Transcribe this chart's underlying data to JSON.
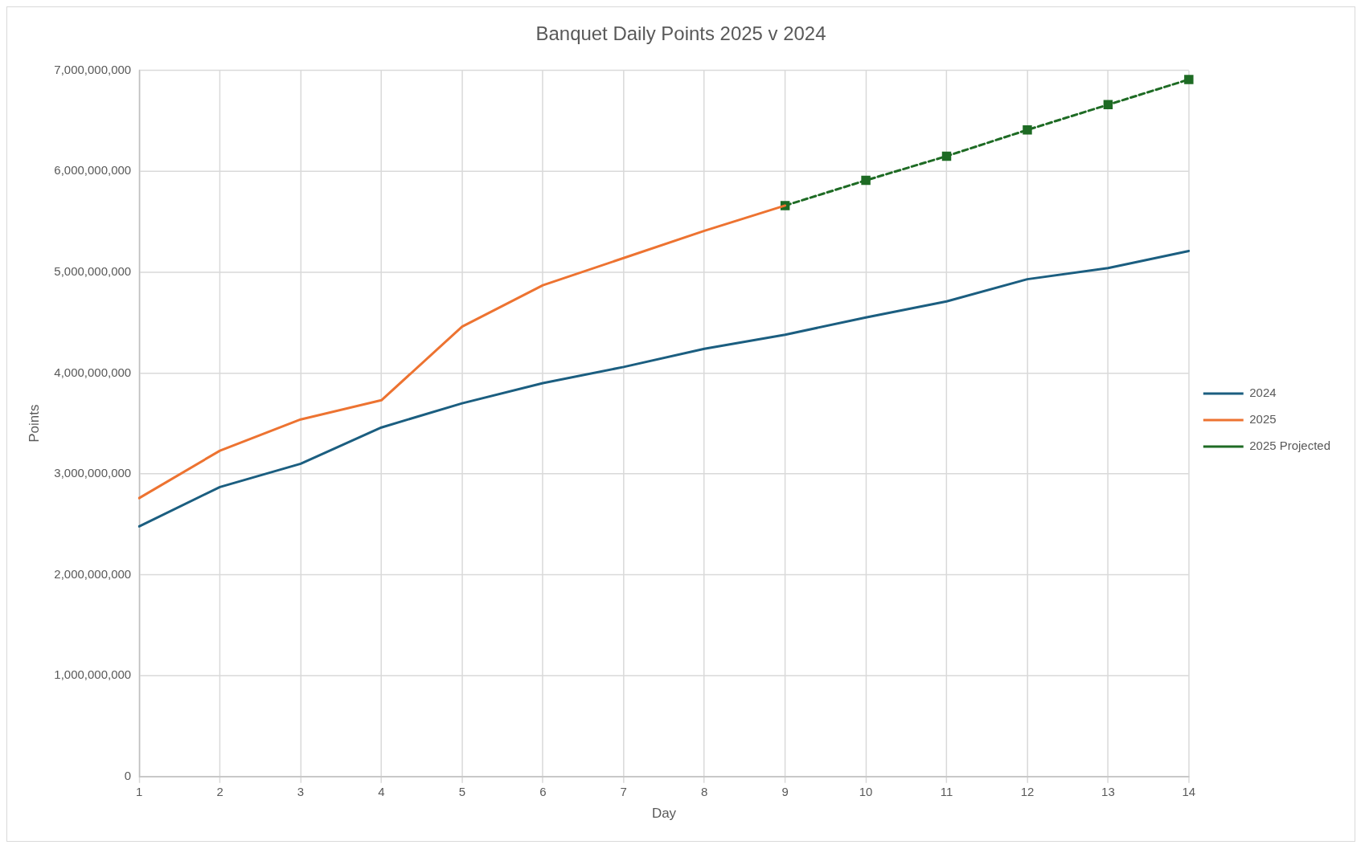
{
  "chart_data": {
    "type": "line",
    "title": "Banquet Daily Points 2025 v 2024",
    "xlabel": "Day",
    "ylabel": "Points",
    "categories": [
      "1",
      "2",
      "3",
      "4",
      "5",
      "6",
      "7",
      "8",
      "9",
      "10",
      "11",
      "12",
      "13",
      "14"
    ],
    "series": [
      {
        "name": "2024",
        "color": "#1b5e80",
        "values": [
          2480000000,
          2870000000,
          3100000000,
          3460000000,
          3700000000,
          3900000000,
          4060000000,
          4240000000,
          4380000000,
          4550000000,
          4710000000,
          4930000000,
          5040000000,
          5210000000
        ]
      },
      {
        "name": "2025",
        "color": "#ed7331",
        "values": [
          2760000000,
          3230000000,
          3540000000,
          3730000000,
          4460000000,
          4870000000,
          5140000000,
          5410000000,
          5660000000,
          null,
          null,
          null,
          null,
          null
        ]
      },
      {
        "name": "2025 Projected",
        "color": "#1e6b24",
        "marker": "square",
        "line_style": "dashed",
        "values": [
          null,
          null,
          null,
          null,
          null,
          null,
          null,
          null,
          5660000000,
          5910000000,
          6150000000,
          6410000000,
          6660000000,
          6910000000
        ]
      }
    ],
    "ylim": [
      0,
      7000000000
    ],
    "yticks": [
      0,
      {
        "value": 1000000000,
        "label": "1,000,000,000"
      },
      {
        "value": 2000000000,
        "label": "2,000,000,000"
      },
      {
        "value": 3000000000,
        "label": "3,000,000,000"
      },
      {
        "value": 4000000000,
        "label": "4,000,000,000"
      },
      {
        "value": 5000000000,
        "label": "5,000,000,000"
      },
      {
        "value": 6000000000,
        "label": "6,000,000,000"
      },
      {
        "value": 7000000000,
        "label": "7,000,000,000"
      }
    ],
    "grid": true,
    "legend": "right"
  }
}
